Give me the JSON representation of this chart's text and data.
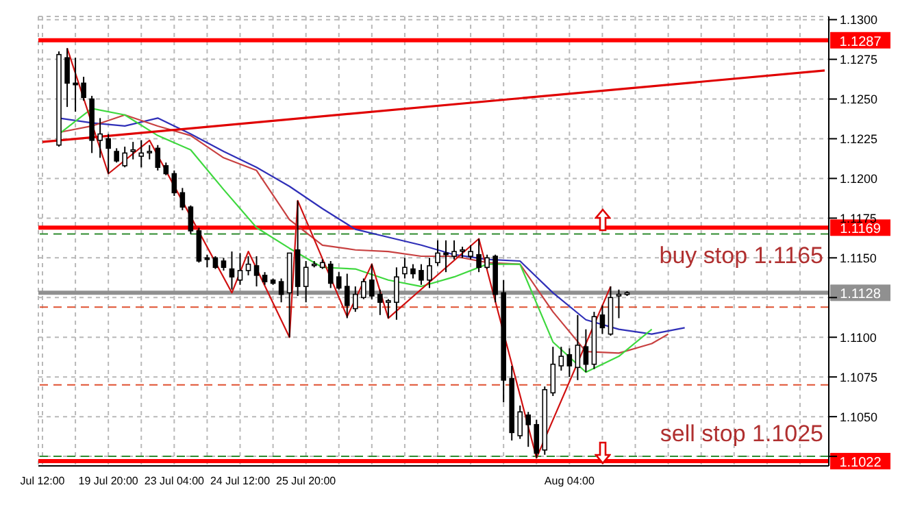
{
  "chart_data": {
    "type": "candlestick",
    "categories": [
      "Jul 12:00",
      null,
      null,
      null,
      null,
      null,
      null,
      null,
      "19 Jul 20:00",
      null,
      null,
      null,
      null,
      null,
      null,
      null,
      "23 Jul 04:00",
      null,
      null,
      null,
      null,
      null,
      null,
      null,
      "24 Jul 12:00",
      null,
      null,
      null,
      null,
      null,
      null,
      null,
      "25 Jul 20:00",
      null,
      null,
      null,
      null,
      null,
      null,
      null,
      null,
      null,
      null,
      null,
      null,
      null,
      null,
      null,
      null,
      null,
      null,
      null,
      null,
      null,
      null,
      null,
      null,
      null,
      null,
      null,
      null,
      null,
      null,
      null,
      "Aug 04:00",
      null,
      null,
      null,
      null,
      null,
      null,
      null,
      null,
      null,
      null,
      null,
      null,
      null,
      null,
      null,
      null,
      null,
      null,
      null,
      null,
      null,
      null,
      null,
      null,
      null,
      null,
      null,
      null,
      null,
      null,
      null
    ],
    "ohlc": [
      null,
      null,
      [
        1.1221,
        1.128,
        1.122,
        1.1278
      ],
      [
        1.1276,
        1.1282,
        1.1245,
        1.126
      ],
      [
        1.126,
        1.1276,
        1.1242,
        1.1259
      ],
      [
        1.126,
        1.1264,
        1.1249,
        1.1251
      ],
      [
        1.125,
        1.1252,
        1.1216,
        1.1224
      ],
      [
        1.1224,
        1.1238,
        1.1213,
        1.1228
      ],
      [
        1.1225,
        1.1228,
        1.1203,
        1.1219
      ],
      [
        1.1217,
        1.1219,
        1.121,
        1.1211
      ],
      [
        1.1208,
        1.122,
        1.1207,
        1.1216
      ],
      [
        1.1217,
        1.1223,
        1.1212,
        1.1218
      ],
      [
        1.1214,
        1.1224,
        1.1207,
        1.1216
      ],
      [
        1.1217,
        1.1221,
        1.1212,
        1.1217
      ],
      [
        1.1219,
        1.1221,
        1.1205,
        1.1207
      ],
      [
        1.1208,
        1.121,
        1.1202,
        1.1203
      ],
      [
        1.1203,
        1.1205,
        1.1189,
        1.1191
      ],
      [
        1.1191,
        1.1194,
        1.118,
        1.1182
      ],
      [
        1.1182,
        1.1183,
        1.1165,
        1.1167
      ],
      [
        1.1167,
        1.1169,
        1.1147,
        1.1148
      ],
      [
        1.115,
        1.1152,
        1.1144,
        1.1149
      ],
      [
        1.115,
        1.1151,
        1.1143,
        1.1144
      ],
      [
        1.1148,
        1.115,
        1.1142,
        1.1144
      ],
      [
        1.1143,
        1.1154,
        1.113,
        1.1138
      ],
      [
        1.1136,
        1.1153,
        1.1133,
        1.1142
      ],
      [
        1.1142,
        1.1151,
        1.1139,
        1.1146
      ],
      [
        1.1145,
        1.1151,
        1.1132,
        1.1139
      ],
      [
        1.1139,
        1.1141,
        1.1133,
        1.1135
      ],
      [
        1.1136,
        1.1137,
        1.1133,
        1.1134
      ],
      [
        1.1135,
        1.1137,
        1.1122,
        1.1127
      ],
      [
        1.1128,
        1.1153,
        1.11,
        1.1153
      ],
      [
        1.1155,
        1.1186,
        1.1126,
        1.1132
      ],
      [
        1.1132,
        1.1148,
        1.1122,
        1.1144
      ],
      [
        1.1146,
        1.1148,
        1.1144,
        1.1146
      ],
      [
        1.1144,
        1.1149,
        1.1143,
        1.1147
      ],
      [
        1.1146,
        1.1148,
        1.1131,
        1.1134
      ],
      [
        1.1138,
        1.1141,
        1.113,
        1.1131
      ],
      [
        1.1132,
        1.114,
        1.1112,
        1.112
      ],
      [
        1.1118,
        1.1132,
        1.1116,
        1.1127
      ],
      [
        1.1125,
        1.1137,
        1.1124,
        1.1135
      ],
      [
        1.1136,
        1.1146,
        1.1124,
        1.1126
      ],
      [
        1.1127,
        1.113,
        1.1114,
        1.1122
      ],
      [
        1.1122,
        1.1124,
        1.1112,
        1.1123
      ],
      [
        1.1122,
        1.1144,
        1.1111,
        1.1138
      ],
      [
        1.114,
        1.115,
        1.1137,
        1.1144
      ],
      [
        1.1143,
        1.1146,
        1.1137,
        1.114
      ],
      [
        1.1142,
        1.1146,
        1.1133,
        1.1136
      ],
      [
        1.1136,
        1.115,
        1.1131,
        1.1145
      ],
      [
        1.1147,
        1.1161,
        1.1145,
        1.1153
      ],
      [
        1.1153,
        1.1161,
        1.1141,
        1.1152
      ],
      [
        1.1151,
        1.1161,
        1.1149,
        1.1154
      ],
      [
        1.1155,
        1.1157,
        1.115,
        1.1155
      ],
      [
        1.1151,
        1.1158,
        1.1149,
        1.1154
      ],
      [
        1.1152,
        1.1162,
        1.1141,
        1.1144
      ],
      [
        1.1144,
        1.1152,
        1.1143,
        1.115
      ],
      [
        1.1151,
        1.1152,
        1.1122,
        1.1127
      ],
      [
        1.1128,
        1.1136,
        1.1059,
        1.1073
      ],
      [
        1.1074,
        1.1082,
        1.1035,
        1.104
      ],
      [
        1.1038,
        1.1057,
        1.1036,
        1.1053
      ],
      [
        1.1051,
        1.1053,
        1.1031,
        1.1045
      ],
      [
        1.1045,
        1.1048,
        1.1024,
        1.1027
      ],
      [
        1.1029,
        1.1069,
        1.1026,
        1.1067
      ],
      [
        1.1065,
        1.1094,
        1.1063,
        1.1083
      ],
      [
        1.1082,
        1.1094,
        1.1079,
        1.1088
      ],
      [
        1.1089,
        1.1093,
        1.1075,
        1.1082
      ],
      [
        1.1081,
        1.1114,
        1.1073,
        1.1095
      ],
      [
        1.1094,
        1.1105,
        1.1078,
        1.1083
      ],
      [
        1.1083,
        1.1116,
        1.108,
        1.1113
      ],
      [
        1.1114,
        1.112,
        1.1102,
        1.1106
      ],
      [
        1.1102,
        1.1132,
        1.1101,
        1.1125
      ],
      [
        1.1126,
        1.113,
        1.1112,
        1.1127
      ],
      [
        1.1127,
        1.1129,
        1.1126,
        1.1128
      ],
      null,
      null,
      null,
      null,
      null,
      null,
      null,
      null,
      null,
      null,
      null,
      null,
      null,
      null,
      null,
      null,
      null,
      null,
      null,
      null,
      null,
      null,
      null,
      null
    ],
    "series": [
      {
        "type": "line",
        "color": "#2f2fb8",
        "values": [
          null,
          null,
          1.1238,
          null,
          null,
          null,
          1.1235,
          null,
          null,
          null,
          1.1233,
          null,
          null,
          null,
          1.1238,
          null,
          null,
          null,
          1.1228,
          null,
          null,
          null,
          1.1217,
          null,
          null,
          null,
          1.1207,
          null,
          null,
          null,
          1.1195,
          null,
          null,
          null,
          1.1181,
          null,
          null,
          null,
          1.1168,
          null,
          null,
          null,
          1.1163,
          null,
          null,
          null,
          1.1158,
          null,
          null,
          null,
          1.1152,
          null,
          null,
          null,
          1.1149,
          null,
          null,
          null,
          1.1148,
          null,
          null,
          null,
          1.1128,
          null,
          null,
          null,
          1.1111,
          null,
          null,
          null,
          1.1105,
          null,
          null,
          null,
          1.1102,
          null,
          null,
          null,
          1.1106,
          null,
          null,
          null,
          null,
          null,
          null,
          null,
          null,
          null,
          null,
          null,
          null,
          null,
          null,
          null,
          null,
          null
        ]
      },
      {
        "type": "line",
        "color": "#c84040",
        "values": [
          null,
          null,
          1.1229,
          null,
          null,
          null,
          1.1233,
          null,
          null,
          null,
          1.124,
          null,
          null,
          null,
          1.1233,
          null,
          null,
          null,
          1.1227,
          null,
          null,
          null,
          1.1213,
          null,
          null,
          null,
          1.1205,
          null,
          null,
          null,
          1.1174,
          null,
          null,
          null,
          1.1158,
          null,
          null,
          null,
          1.1155,
          null,
          null,
          null,
          1.1154,
          null,
          null,
          null,
          1.1151,
          null,
          null,
          null,
          1.1151,
          null,
          null,
          null,
          1.1147,
          null,
          null,
          null,
          1.1146,
          null,
          null,
          null,
          1.1116,
          null,
          null,
          null,
          1.1091,
          null,
          null,
          null,
          1.109,
          null,
          null,
          null,
          1.1096,
          null,
          1.1102,
          null,
          null,
          null,
          null,
          null,
          null,
          null,
          null,
          null,
          null,
          null,
          null,
          null,
          null,
          null,
          null,
          null,
          null,
          null
        ]
      },
      {
        "type": "line",
        "color": "#3ed83e",
        "values": [
          null,
          null,
          1.1228,
          null,
          null,
          null,
          1.1244,
          null,
          null,
          null,
          1.124,
          null,
          null,
          null,
          1.1227,
          null,
          null,
          null,
          1.1218,
          null,
          null,
          null,
          1.1193,
          null,
          null,
          null,
          1.1169,
          null,
          null,
          null,
          1.1156,
          null,
          null,
          null,
          1.1144,
          null,
          null,
          null,
          1.1143,
          null,
          null,
          null,
          1.1136,
          null,
          null,
          null,
          1.1132,
          null,
          null,
          null,
          1.1138,
          null,
          null,
          null,
          1.1146,
          null,
          null,
          null,
          1.1146,
          null,
          null,
          null,
          1.1097,
          null,
          null,
          null,
          1.1078,
          null,
          null,
          null,
          1.1088,
          null,
          null,
          null,
          1.1105,
          null,
          null,
          null,
          null,
          null,
          null,
          null,
          null,
          null,
          null,
          null,
          null,
          null,
          null,
          null,
          null,
          null,
          null,
          null,
          null,
          null
        ]
      },
      {
        "type": "line",
        "color": "#d01010",
        "values": [
          null,
          null,
          null,
          1.1282,
          null,
          null,
          null,
          null,
          1.1203,
          null,
          null,
          null,
          null,
          1.1224,
          null,
          null,
          null,
          null,
          null,
          null,
          null,
          null,
          null,
          1.1128,
          null,
          1.1154,
          null,
          null,
          null,
          null,
          1.11,
          1.1186,
          null,
          null,
          null,
          null,
          null,
          1.1113,
          null,
          null,
          1.1146,
          null,
          1.1112,
          null,
          null,
          null,
          null,
          null,
          null,
          null,
          null,
          null,
          null,
          1.1162,
          null,
          null,
          null,
          null,
          null,
          null,
          1.1024,
          null,
          null,
          null,
          null,
          null,
          null,
          null,
          null,
          1.1132,
          null,
          null,
          null,
          null,
          null,
          null,
          null,
          null,
          null,
          null,
          null,
          null,
          null,
          null,
          null,
          null,
          null,
          null,
          null,
          null,
          null,
          null,
          null,
          null,
          null,
          null
        ]
      },
      {
        "type": "line",
        "color": "#e00000",
        "values": [
          1.1223,
          null,
          null,
          null,
          null,
          null,
          null,
          null,
          null,
          null,
          null,
          null,
          null,
          null,
          null,
          null,
          null,
          null,
          null,
          null,
          null,
          null,
          null,
          null,
          null,
          null,
          null,
          null,
          null,
          null,
          null,
          null,
          null,
          null,
          null,
          null,
          null,
          null,
          null,
          null,
          null,
          null,
          null,
          null,
          null,
          null,
          null,
          null,
          null,
          null,
          null,
          null,
          null,
          null,
          null,
          null,
          null,
          null,
          null,
          null,
          null,
          null,
          null,
          null,
          null,
          null,
          null,
          null,
          null,
          null,
          null,
          null,
          null,
          null,
          null,
          null,
          null,
          null,
          null,
          null,
          null,
          null,
          null,
          null,
          null,
          null,
          null,
          null,
          null,
          null,
          null,
          null,
          null,
          null,
          null,
          1.1268
        ]
      }
    ],
    "ylim": [
      1.1019,
      1.1302
    ],
    "yticks": [
      {
        "value": 1.1025,
        "label": null
      },
      {
        "value": 1.105,
        "label": "1.1050"
      },
      {
        "value": 1.1075,
        "label": "1.1075"
      },
      {
        "value": 1.11,
        "label": "1.1100"
      },
      {
        "value": 1.1125,
        "label": null
      },
      {
        "value": 1.115,
        "label": "1.1150"
      },
      {
        "value": 1.1175,
        "label": "1.1175"
      },
      {
        "value": 1.12,
        "label": "1.1200"
      },
      {
        "value": 1.1225,
        "label": "1.1225"
      },
      {
        "value": 1.125,
        "label": "1.1250"
      },
      {
        "value": 1.1275,
        "label": "1.1275"
      },
      {
        "value": 1.13,
        "label": "1.1300"
      }
    ],
    "grid": true,
    "ref_lines": [
      {
        "axis": "y",
        "value": 1.1287,
        "label": "1.1287",
        "color": "#ff0000",
        "line_style": "solid"
      },
      {
        "axis": "y",
        "value": 1.1169,
        "label": "1.1169",
        "color": "#ff0000",
        "line_style": "solid"
      },
      {
        "axis": "y",
        "value": 1.1022,
        "label": "1.1022",
        "color": "#ff0000",
        "line_style": "solid"
      },
      {
        "axis": "y",
        "value": 1.1128,
        "label": "1.1128",
        "color": "#909090",
        "line_style": "solid"
      },
      {
        "axis": "y",
        "value": 1.1165,
        "color": "#2e8b2e",
        "line_style": "dashed"
      },
      {
        "axis": "y",
        "value": 1.1025,
        "color": "#2e8b2e",
        "line_style": "dashed"
      },
      {
        "axis": "y",
        "value": 1.1119,
        "color": "#e05030",
        "line_style": "dashed"
      },
      {
        "axis": "y",
        "value": 1.107,
        "color": "#e05030",
        "line_style": "dashed"
      }
    ],
    "annotations": [
      {
        "text": "buy stop 1.1165",
        "y": 1.1165
      },
      {
        "text": "sell stop 1.1025",
        "y": 1.1025
      }
    ]
  }
}
